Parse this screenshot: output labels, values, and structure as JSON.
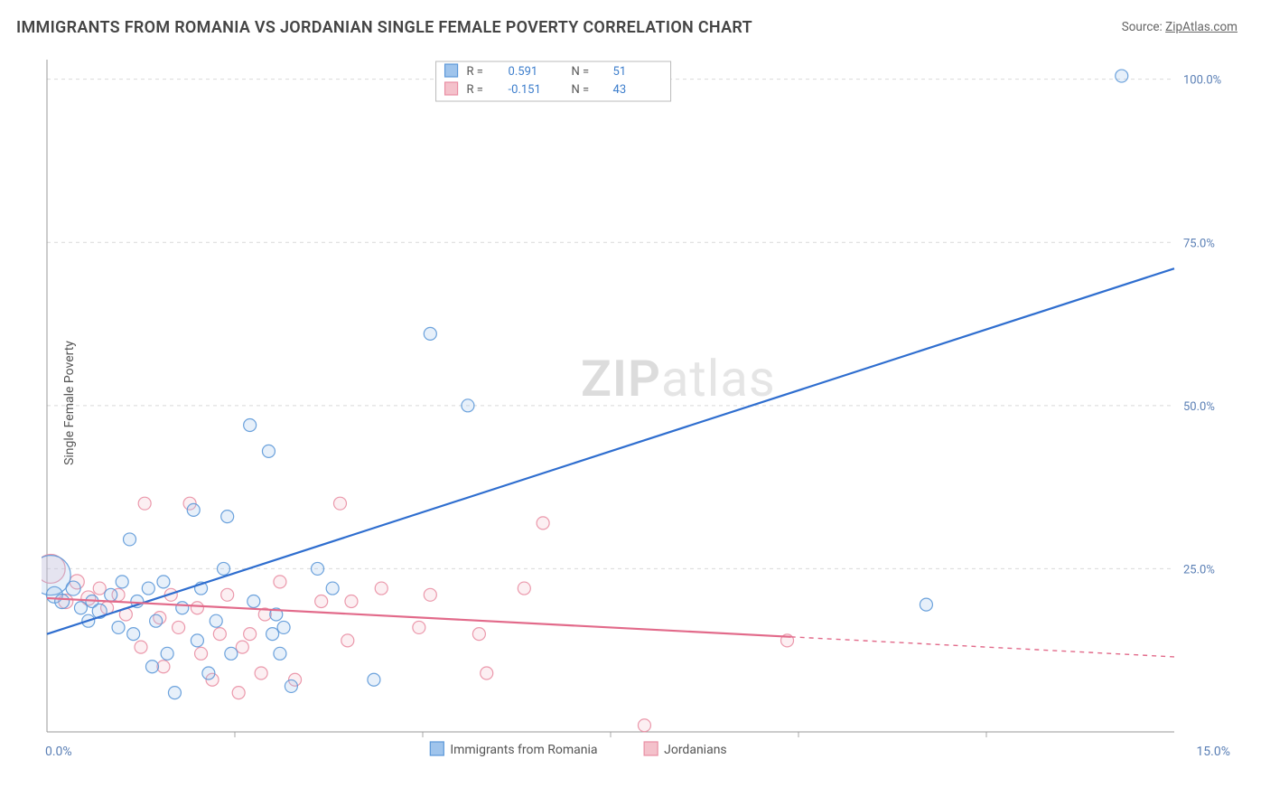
{
  "title": "IMMIGRANTS FROM ROMANIA VS JORDANIAN SINGLE FEMALE POVERTY CORRELATION CHART",
  "source_label": "Source: ",
  "source_name": "ZipAtlas.com",
  "y_axis_label": "Single Female Poverty",
  "watermark": {
    "zip": "ZIP",
    "rest": "atlas"
  },
  "chart": {
    "type": "scatter",
    "xlim": [
      0,
      15
    ],
    "ylim": [
      0,
      103
    ],
    "x_ticks": [
      0,
      15
    ],
    "x_tick_labels": [
      "0.0%",
      "15.0%"
    ],
    "x_minor_ticks": [
      2.5,
      5.0,
      7.5,
      10.0,
      12.5
    ],
    "y_ticks": [
      25,
      50,
      75,
      100
    ],
    "y_tick_labels": [
      "25.0%",
      "50.0%",
      "75.0%",
      "100.0%"
    ],
    "background_color": "#ffffff",
    "grid_color": "#d9d9d9",
    "axis_label_color": "#5a7fb5"
  },
  "series": [
    {
      "name": "Immigrants from Romania",
      "color_fill": "#9fc4ec",
      "color_stroke": "#5c98d8",
      "R": "0.591",
      "N": "51",
      "trend": {
        "x1": 0,
        "y1": 15,
        "x2": 15,
        "y2": 71,
        "solid_end_x": 15,
        "color": "#2f6ecf"
      },
      "points": [
        {
          "x": 0.05,
          "y": 24,
          "r": 22
        },
        {
          "x": 0.1,
          "y": 21,
          "r": 9
        },
        {
          "x": 0.2,
          "y": 20,
          "r": 8
        },
        {
          "x": 0.35,
          "y": 22,
          "r": 8
        },
        {
          "x": 0.45,
          "y": 19,
          "r": 7
        },
        {
          "x": 0.6,
          "y": 20,
          "r": 7
        },
        {
          "x": 0.55,
          "y": 17,
          "r": 7
        },
        {
          "x": 0.7,
          "y": 18.5,
          "r": 8
        },
        {
          "x": 0.85,
          "y": 21,
          "r": 7
        },
        {
          "x": 0.95,
          "y": 16,
          "r": 7
        },
        {
          "x": 1.0,
          "y": 23,
          "r": 7
        },
        {
          "x": 1.1,
          "y": 29.5,
          "r": 7
        },
        {
          "x": 1.15,
          "y": 15,
          "r": 7
        },
        {
          "x": 1.2,
          "y": 20,
          "r": 7
        },
        {
          "x": 1.35,
          "y": 22,
          "r": 7
        },
        {
          "x": 1.4,
          "y": 10,
          "r": 7
        },
        {
          "x": 1.45,
          "y": 17,
          "r": 7
        },
        {
          "x": 1.55,
          "y": 23,
          "r": 7
        },
        {
          "x": 1.6,
          "y": 12,
          "r": 7
        },
        {
          "x": 1.7,
          "y": 6,
          "r": 7
        },
        {
          "x": 1.8,
          "y": 19,
          "r": 7
        },
        {
          "x": 1.95,
          "y": 34,
          "r": 7
        },
        {
          "x": 2.0,
          "y": 14,
          "r": 7
        },
        {
          "x": 2.05,
          "y": 22,
          "r": 7
        },
        {
          "x": 2.15,
          "y": 9,
          "r": 7
        },
        {
          "x": 2.25,
          "y": 17,
          "r": 7
        },
        {
          "x": 2.35,
          "y": 25,
          "r": 7
        },
        {
          "x": 2.4,
          "y": 33,
          "r": 7
        },
        {
          "x": 2.45,
          "y": 12,
          "r": 7
        },
        {
          "x": 2.7,
          "y": 47,
          "r": 7
        },
        {
          "x": 2.75,
          "y": 20,
          "r": 7
        },
        {
          "x": 2.95,
          "y": 43,
          "r": 7
        },
        {
          "x": 3.0,
          "y": 15,
          "r": 7
        },
        {
          "x": 3.05,
          "y": 18,
          "r": 7
        },
        {
          "x": 3.1,
          "y": 12,
          "r": 7
        },
        {
          "x": 3.15,
          "y": 16,
          "r": 7
        },
        {
          "x": 3.25,
          "y": 7,
          "r": 7
        },
        {
          "x": 3.6,
          "y": 25,
          "r": 7
        },
        {
          "x": 3.8,
          "y": 22,
          "r": 7
        },
        {
          "x": 4.35,
          "y": 8,
          "r": 7
        },
        {
          "x": 5.1,
          "y": 61,
          "r": 7
        },
        {
          "x": 5.6,
          "y": 50,
          "r": 7
        },
        {
          "x": 11.7,
          "y": 19.5,
          "r": 7
        },
        {
          "x": 14.3,
          "y": 100.5,
          "r": 7
        }
      ]
    },
    {
      "name": "Jordanians",
      "color_fill": "#f4c1cb",
      "color_stroke": "#e98ea3",
      "R": "-0.151",
      "N": "43",
      "trend": {
        "x1": 0,
        "y1": 20.5,
        "x2": 15,
        "y2": 11.5,
        "solid_end_x": 9.9,
        "color": "#e26a8a"
      },
      "points": [
        {
          "x": 0.05,
          "y": 25,
          "r": 16
        },
        {
          "x": 0.25,
          "y": 20,
          "r": 8
        },
        {
          "x": 0.4,
          "y": 23,
          "r": 8
        },
        {
          "x": 0.55,
          "y": 20.5,
          "r": 8
        },
        {
          "x": 0.7,
          "y": 22,
          "r": 7
        },
        {
          "x": 0.8,
          "y": 19,
          "r": 7
        },
        {
          "x": 0.95,
          "y": 21,
          "r": 7
        },
        {
          "x": 1.05,
          "y": 18,
          "r": 7
        },
        {
          "x": 1.25,
          "y": 13,
          "r": 7
        },
        {
          "x": 1.3,
          "y": 35,
          "r": 7
        },
        {
          "x": 1.5,
          "y": 17.5,
          "r": 7
        },
        {
          "x": 1.55,
          "y": 10,
          "r": 7
        },
        {
          "x": 1.65,
          "y": 21,
          "r": 7
        },
        {
          "x": 1.75,
          "y": 16,
          "r": 7
        },
        {
          "x": 1.9,
          "y": 35,
          "r": 7
        },
        {
          "x": 2.0,
          "y": 19,
          "r": 7
        },
        {
          "x": 2.05,
          "y": 12,
          "r": 7
        },
        {
          "x": 2.2,
          "y": 8,
          "r": 7
        },
        {
          "x": 2.3,
          "y": 15,
          "r": 7
        },
        {
          "x": 2.4,
          "y": 21,
          "r": 7
        },
        {
          "x": 2.55,
          "y": 6,
          "r": 7
        },
        {
          "x": 2.6,
          "y": 13,
          "r": 7
        },
        {
          "x": 2.7,
          "y": 15,
          "r": 7
        },
        {
          "x": 2.85,
          "y": 9,
          "r": 7
        },
        {
          "x": 2.9,
          "y": 18,
          "r": 7
        },
        {
          "x": 3.1,
          "y": 23,
          "r": 7
        },
        {
          "x": 3.3,
          "y": 8,
          "r": 7
        },
        {
          "x": 3.65,
          "y": 20,
          "r": 7
        },
        {
          "x": 3.9,
          "y": 35,
          "r": 7
        },
        {
          "x": 4.0,
          "y": 14,
          "r": 7
        },
        {
          "x": 4.05,
          "y": 20,
          "r": 7
        },
        {
          "x": 4.45,
          "y": 22,
          "r": 7
        },
        {
          "x": 4.95,
          "y": 16,
          "r": 7
        },
        {
          "x": 5.1,
          "y": 21,
          "r": 7
        },
        {
          "x": 5.75,
          "y": 15,
          "r": 7
        },
        {
          "x": 5.85,
          "y": 9,
          "r": 7
        },
        {
          "x": 6.35,
          "y": 22,
          "r": 7
        },
        {
          "x": 6.6,
          "y": 32,
          "r": 7
        },
        {
          "x": 7.95,
          "y": 1,
          "r": 7
        },
        {
          "x": 9.85,
          "y": 14,
          "r": 7
        }
      ]
    }
  ],
  "legend_top": {
    "labels": [
      "R =",
      "N ="
    ]
  },
  "legend_bottom": {
    "items": [
      "Immigrants from Romania",
      "Jordanians"
    ]
  }
}
